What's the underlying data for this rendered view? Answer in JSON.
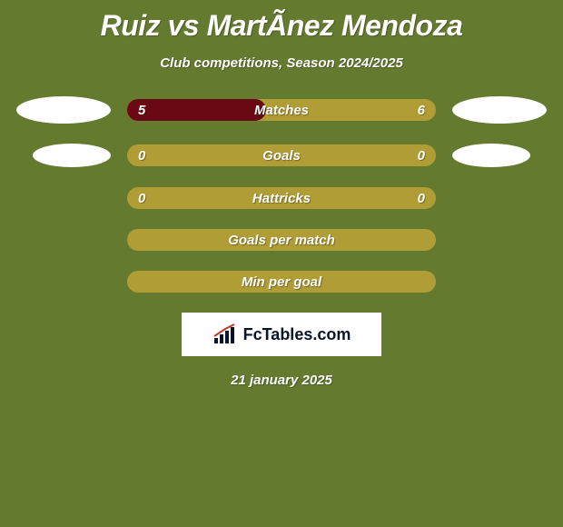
{
  "title": "Ruiz vs MartÃ­nez Mendoza",
  "subtitle": "Club competitions, Season 2024/2025",
  "rows": [
    {
      "left": "5",
      "center": "Matches",
      "right": "6",
      "fill_pct": 45,
      "show_left_ellipse": "big",
      "show_right_ellipse": "big"
    },
    {
      "left": "0",
      "center": "Goals",
      "right": "0",
      "fill_pct": 0,
      "show_left_ellipse": "small",
      "show_right_ellipse": "small"
    },
    {
      "left": "0",
      "center": "Hattricks",
      "right": "0",
      "fill_pct": 0,
      "show_left_ellipse": "none",
      "show_right_ellipse": "none"
    },
    {
      "left": "",
      "center": "Goals per match",
      "right": "",
      "fill_pct": 0,
      "show_left_ellipse": "none",
      "show_right_ellipse": "none"
    },
    {
      "left": "",
      "center": "Min per goal",
      "right": "",
      "fill_pct": 0,
      "show_left_ellipse": "none",
      "show_right_ellipse": "none"
    }
  ],
  "colors": {
    "page_bg": "#647a2f",
    "bar_bg": "#b19d35",
    "bar_fill": "#6a0813",
    "text": "#fefefe",
    "ellipse": "#fefeff",
    "logo_bg": "#fefeff",
    "logo_text": "#0a1428"
  },
  "logo_text": "FcTables.com",
  "date": "21 january 2025"
}
